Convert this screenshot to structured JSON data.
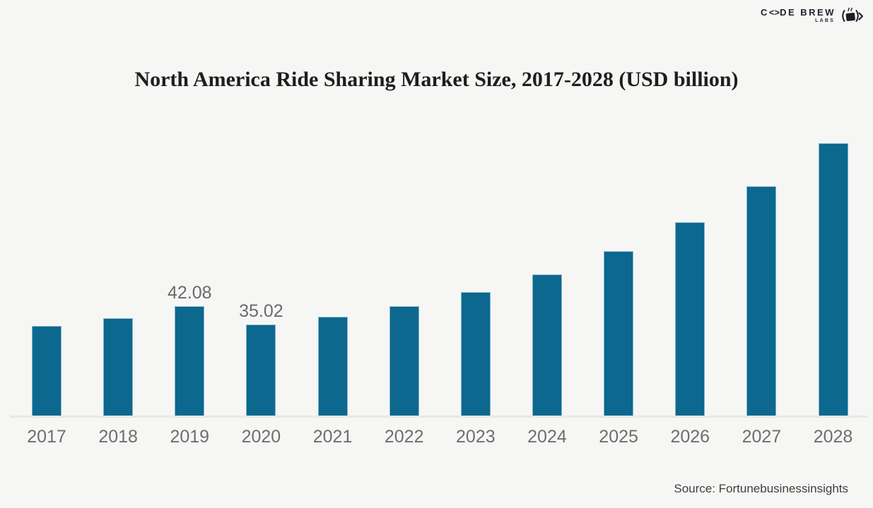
{
  "logo": {
    "brand_c": "C",
    "brand_brackets": "<>",
    "brand_rest": "DE BREW",
    "sub": "LABS"
  },
  "source_note": "Source: Fortunebusinessinsights",
  "chart_data": {
    "type": "bar",
    "title": "North America Ride Sharing Market Size, 2017-2028 (USD billion)",
    "xlabel": "",
    "ylabel": "",
    "categories": [
      "2017",
      "2018",
      "2019",
      "2020",
      "2021",
      "2022",
      "2023",
      "2024",
      "2025",
      "2026",
      "2027",
      "2028"
    ],
    "values": [
      34.7,
      37.6,
      42.08,
      35.02,
      38.1,
      42.2,
      47.6,
      54.3,
      63.2,
      74.3,
      88.1,
      104.6
    ],
    "data_labels": [
      "",
      "",
      "42.08",
      "35.02",
      "",
      "",
      "",
      "",
      "",
      "",
      "",
      ""
    ],
    "bar_color": "#0c688e",
    "ylim": [
      0,
      110
    ],
    "grid": false,
    "legend": "none",
    "background_color": "#f6f6f5",
    "label_color": "#6e6e6e"
  }
}
